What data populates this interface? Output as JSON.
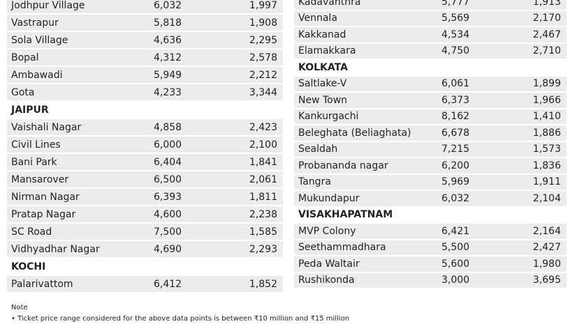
{
  "left_table": {
    "rows": [
      [
        "Jodhpur Village",
        "6,032",
        "1,997"
      ],
      [
        "Vastrapur",
        "5,818",
        "1,908"
      ],
      [
        "Sola Village",
        "4,636",
        "2,295"
      ],
      [
        "Bopal",
        "4,312",
        "2,578"
      ],
      [
        "Ambawadi",
        "5,949",
        "2,212"
      ],
      [
        "Gota",
        "4,233",
        "3,344"
      ],
      [
        "JAIPUR"
      ],
      [
        "Vaishali Nagar",
        "4,858",
        "2,423"
      ],
      [
        "Civil Lines",
        "6,000",
        "2,100"
      ],
      [
        "Bani Park",
        "6,404",
        "1,841"
      ],
      [
        "Mansarover",
        "6,500",
        "2,061"
      ],
      [
        "Nirman Nagar",
        "6,393",
        "1,811"
      ],
      [
        "Pratap Nagar",
        "4,600",
        "2,238"
      ],
      [
        "SC Road",
        "7,500",
        "1,585"
      ],
      [
        "Vidhyadhar Nagar",
        "4,690",
        "2,293"
      ],
      [
        "KOCHI"
      ],
      [
        "Palarivattom",
        "6,412",
        "1,852"
      ]
    ]
  },
  "right_table": {
    "rows": [
      [
        "Kadavanthra",
        "5,777",
        "1,913"
      ],
      [
        "Vennala",
        "5,569",
        "2,170"
      ],
      [
        "Kakkanad",
        "4,534",
        "2,467"
      ],
      [
        "Elamakkara",
        "4,750",
        "2,710"
      ],
      [
        "KOLKATA"
      ],
      [
        "Saltlake-V",
        "6,061",
        "1,899"
      ],
      [
        "New Town",
        "6,373",
        "1,966"
      ],
      [
        "Kankurgachi",
        "8,162",
        "1,410"
      ],
      [
        "Beleghata (Beliaghata)",
        "6,678",
        "1,886"
      ],
      [
        "Sealdah",
        "7,215",
        "1,573"
      ],
      [
        "Probananda nagar",
        "6,200",
        "1,836"
      ],
      [
        "Tangra",
        "5,969",
        "1,911"
      ],
      [
        "Mukundapur",
        "6,032",
        "2,104"
      ],
      [
        "VISAKHAPATNAM"
      ],
      [
        "MVP Colony",
        "6,421",
        "2,164"
      ],
      [
        "Seethammadhara",
        "5,500",
        "2,427"
      ],
      [
        "Peda Waltair",
        "5,600",
        "1,980"
      ],
      [
        "Rushikonda",
        "3,000",
        "3,695"
      ]
    ]
  },
  "note": {
    "title": "Note",
    "text": "• Ticket price range considered for the above data points is between ₹10 million and ₹15 million"
  }
}
